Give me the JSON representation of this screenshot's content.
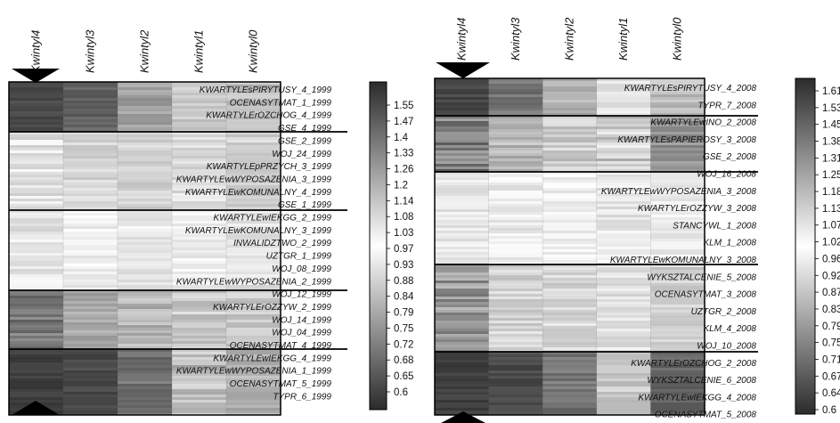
{
  "chart_data": [
    {
      "type": "heatmap",
      "columns": [
        "Kwintyl4",
        "Kwintyl3",
        "Kwintyl2",
        "Kwintyl1",
        "Kwintyl0"
      ],
      "row_labels": [
        "KWARTYLEsPIRYTUSY_4_1999",
        "OCENASYTMAT_1_1999",
        "KWARTYLErOZCHOG_4_1999",
        "GSE_4_1999",
        "GSE_2_1999",
        "WOJ_24_1999",
        "KWARTYLEpPRZYCH_3_1999",
        "KWARTYLEwWYPOSAZENIA_3_1999",
        "KWARTYLEwKOMUNALNY_4_1999",
        "GSE_1_1999",
        "KWARTYLEwIEKGG_2_1999",
        "KWARTYLEwKOMUNALNY_3_1999",
        "INWALIDZTWO_2_1999",
        "UZTGR_1_1999",
        "WOJ_08_1999",
        "KWARTYLEwWYPOSAZENIA_2_1999",
        "WOJ_12_1999",
        "KWARTYLErOZZYW_2_1999",
        "WOJ_14_1999",
        "WOJ_04_1999",
        "OCENASYTMAT_4_1999",
        "KWARTYLEwIEKGG_4_1999",
        "KWARTYLEwWYPOSAZENIA_1_1999",
        "OCENASYTMAT_5_1999",
        "TYPR_6_1999"
      ],
      "clusters": 5,
      "colorbar_ticks": [
        1.55,
        1.47,
        1.4,
        1.33,
        1.26,
        1.2,
        1.14,
        1.08,
        1.03,
        0.97,
        0.93,
        0.88,
        0.84,
        0.79,
        0.75,
        0.72,
        0.68,
        0.65,
        0.6
      ],
      "colorbar_range": [
        0.6,
        1.6
      ],
      "colors": [
        "#2b2b2b",
        "#ffffff"
      ]
    },
    {
      "type": "heatmap",
      "columns": [
        "Kwintyl4",
        "Kwintyl3",
        "Kwintyl2",
        "Kwintyl1",
        "Kwintyl0"
      ],
      "row_labels": [
        "KWARTYLEsPIRYTUSY_4_2008",
        "TYPR_7_2008",
        "KWARTYLEwINO_2_2008",
        "KWARTYLEsPAPIEROSY_3_2008",
        "GSE_2_2008",
        "WOJ_16_2008",
        "KWARTYLEwWYPOSAZENIA_3_2008",
        "KWARTYLErOZZYW_3_2008",
        "STANCYWL_1_2008",
        "KLM_1_2008",
        "KWARTYLEwKOMUNALNY_3_2008",
        "WYKSZTALCENIE_5_2008",
        "OCENASYTMAT_3_2008",
        "UZTGR_2_2008",
        "KLM_4_2008",
        "WOJ_10_2008",
        "KWARTYLErOZCHOG_2_2008",
        "WYKSZTALCENIE_6_2008",
        "KWARTYLEwIEKGG_4_2008",
        "OCENASYTMAT_5_2008"
      ],
      "clusters": 5,
      "colorbar_ticks": [
        1.61,
        1.53,
        1.45,
        1.38,
        1.31,
        1.25,
        1.18,
        1.13,
        1.07,
        1.02,
        0.96,
        0.92,
        0.87,
        0.83,
        0.79,
        0.75,
        0.71,
        0.67,
        0.64,
        0.6
      ],
      "colorbar_range": [
        0.6,
        1.61
      ],
      "colors": [
        "#2b2b2b",
        "#ffffff"
      ]
    }
  ]
}
